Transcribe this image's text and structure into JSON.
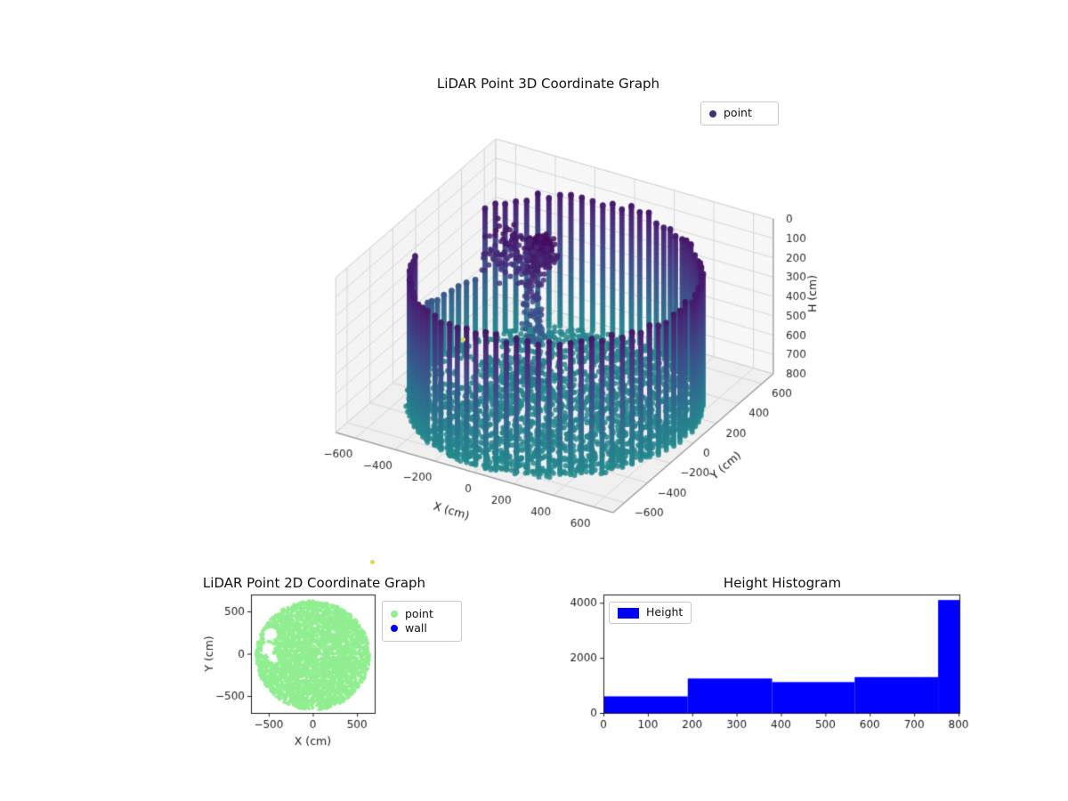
{
  "colors": {
    "background": "#ffffff",
    "text": "#1a1a1a",
    "pane_floor": "#f0f0f0",
    "pane_left": "#f4f4f4",
    "pane_right": "#f7f7f7",
    "grid": "#d7d7d7",
    "axis_edge": "#9a9a9a",
    "stray_point": "#d8da4a"
  },
  "stray_points": [
    {
      "color": "#d8da4a"
    },
    {
      "color": "#d8da4a"
    }
  ],
  "chart_data": [
    {
      "id": "lidar-3d",
      "type": "scatter3d",
      "title": "LiDAR Point 3D Coordinate Graph",
      "legend": [
        {
          "label": "point",
          "color": "#3b3180"
        }
      ],
      "xlabel": "X (cm)",
      "ylabel": "Y (cm)",
      "zlabel": "H (cm)",
      "xlim": [
        -700,
        700
      ],
      "ylim": [
        -700,
        700
      ],
      "zlim": [
        0,
        800
      ],
      "z_axis_inverted": true,
      "xticks": [
        -600,
        -400,
        -200,
        0,
        200,
        400,
        600
      ],
      "yticks": [
        -600,
        -400,
        -200,
        0,
        200,
        400,
        600
      ],
      "zticks": [
        0,
        100,
        200,
        300,
        400,
        500,
        600,
        700,
        800
      ],
      "colormap": "viridis",
      "color_by": "H",
      "color_range": [
        0,
        1500
      ],
      "point_cloud": {
        "wall": {
          "radius_cm": 640,
          "top_h_cm": 95,
          "bottom_h_cm": 800,
          "columns": 84,
          "h_step_cm": 11,
          "gap_theta_deg": [
            148,
            192
          ],
          "gap_top_h_cm": 480
        },
        "floor": {
          "radius_cm": 645,
          "h_cm": 785,
          "points": 2300
        },
        "clusters": [
          {
            "x": -130,
            "y": 110,
            "spread_x": 70,
            "spread_y": 70,
            "h_min": 50,
            "h_max": 180,
            "points": 260
          },
          {
            "x": -300,
            "y": 150,
            "spread_x": 160,
            "spread_y": 150,
            "h_min": 80,
            "h_max": 300,
            "points": 120
          },
          {
            "x": -120,
            "y": 20,
            "spread_x": 60,
            "spread_y": 60,
            "h_min": 120,
            "h_max": 520,
            "points": 90
          },
          {
            "x": -80,
            "y": -60,
            "spread_x": 80,
            "spread_y": 60,
            "h_min": 560,
            "h_max": 700,
            "points": 25
          }
        ]
      }
    },
    {
      "id": "lidar-2d",
      "type": "scatter",
      "title": "LiDAR Point 2D Coordinate Graph",
      "xlabel": "X (cm)",
      "ylabel": "Y (cm)",
      "xlim": [
        -700,
        700
      ],
      "ylim": [
        -700,
        700
      ],
      "xticks": [
        -500,
        0,
        500
      ],
      "yticks": [
        500,
        0,
        -500
      ],
      "legend": [
        {
          "label": "point",
          "color": "#90ee90"
        },
        {
          "label": "wall",
          "color": "#0000ff"
        }
      ],
      "disk": {
        "center": [
          0,
          -20
        ],
        "radius_cm": 645,
        "points": 4200,
        "color": "#90ee90"
      },
      "voids": [
        {
          "x": -480,
          "y": 230,
          "r": 80
        },
        {
          "x": -505,
          "y": 60,
          "r": 75
        },
        {
          "x": -445,
          "y": -50,
          "r": 55
        }
      ]
    },
    {
      "id": "height-histogram",
      "type": "bar",
      "title": "Height Histogram",
      "legend": [
        {
          "label": "Height",
          "color": "#0000ff"
        }
      ],
      "bin_edges": [
        0,
        190,
        380,
        566,
        754,
        802
      ],
      "counts": [
        600,
        1250,
        1120,
        1300,
        4100
      ],
      "xticks": [
        0,
        100,
        200,
        300,
        400,
        500,
        600,
        700,
        800
      ],
      "yticks": [
        0,
        2000,
        4000
      ],
      "xlim": [
        0,
        802
      ],
      "ylim": [
        0,
        4300
      ]
    }
  ]
}
